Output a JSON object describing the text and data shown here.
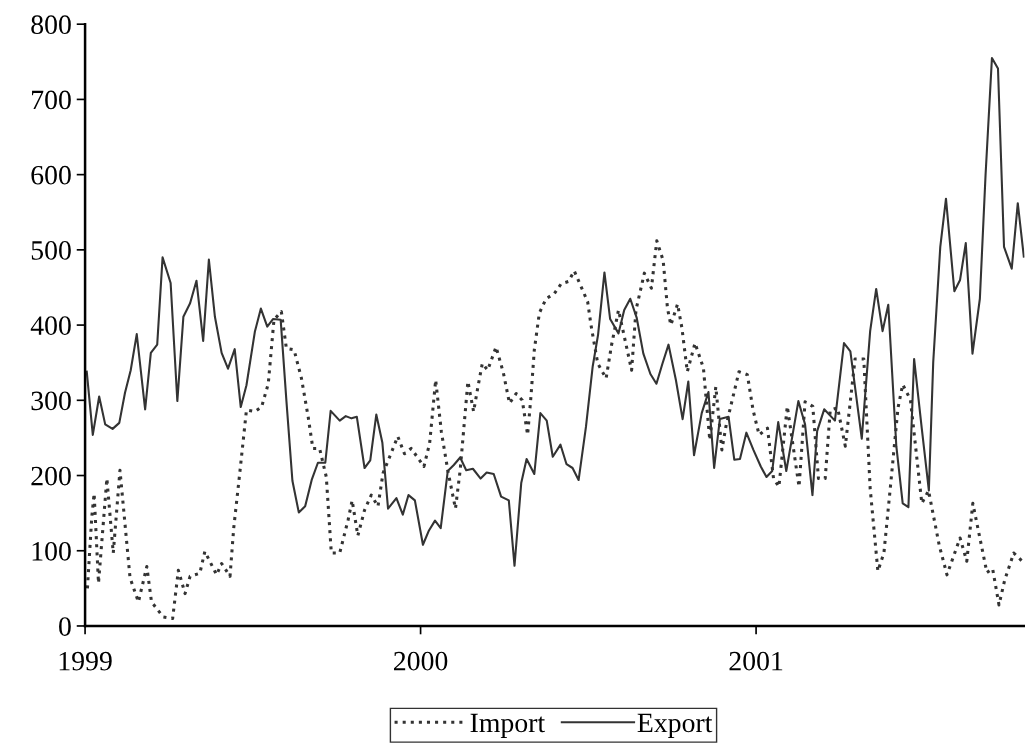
{
  "chart_data": {
    "type": "line",
    "xlim": [
      1999,
      2001.8
    ],
    "xticks": [
      1999,
      2000,
      2001
    ],
    "ylim": [
      0,
      800
    ],
    "yticks": [
      0,
      100,
      200,
      300,
      400,
      500,
      600,
      700,
      800
    ],
    "grid": false,
    "legend": "bottom",
    "marker": "none",
    "series": [
      {
        "name": "Import",
        "color": "#333333",
        "line_style": "dotted",
        "x": [
          1999.007,
          1999.02,
          1999.027,
          1999.04,
          1999.065,
          1999.084,
          1999.104,
          1999.134,
          1999.159,
          1999.184,
          1999.198,
          1999.233,
          1999.261,
          1999.278,
          1999.298,
          1999.313,
          1999.342,
          1999.357,
          1999.392,
          1999.407,
          1999.432,
          1999.443,
          1999.461,
          1999.481,
          1999.506,
          1999.526,
          1999.546,
          1999.563,
          1999.585,
          1999.6,
          1999.623,
          1999.645,
          1999.665,
          1999.679,
          1999.699,
          1999.719,
          1999.734,
          1999.759,
          1999.784,
          1999.796,
          1999.813,
          1999.833,
          1999.853,
          1999.873,
          1999.888,
          1999.908,
          1999.932,
          1999.952,
          1999.972,
          2000.01,
          2000.027,
          2000.045,
          2000.062,
          2000.081,
          2000.104,
          2000.118,
          2000.141,
          2000.158,
          2000.171,
          2000.184,
          2000.2,
          2000.225,
          2000.247,
          2000.265,
          2000.285,
          2000.303,
          2000.319,
          2000.329,
          2000.339,
          2000.354,
          2000.374,
          2000.399,
          2000.419,
          2000.441,
          2000.458,
          2000.498,
          2000.508,
          2000.528,
          2000.553,
          2000.569,
          2000.59,
          2000.629,
          2000.642,
          2000.667,
          2000.688,
          2000.704,
          2000.723,
          2000.736,
          2000.746,
          2000.766,
          2000.779,
          2000.795,
          2000.818,
          2000.843,
          2000.862,
          2000.88,
          2000.898,
          2000.91,
          2000.949,
          2000.974,
          2000.991,
          2001.009,
          2001.034,
          2001.052,
          2001.068,
          2001.093,
          2001.128,
          2001.146,
          2001.169,
          2001.186,
          2001.206,
          2001.221,
          2001.243,
          2001.266,
          2001.295,
          2001.321,
          2001.34,
          2001.363,
          2001.381,
          2001.401,
          2001.423,
          2001.437,
          2001.46,
          2001.494,
          2001.514,
          2001.546,
          2001.569,
          2001.608,
          2001.628,
          2001.646,
          2001.688,
          2001.705,
          2001.724,
          2001.741,
          2001.768,
          2001.798
        ],
        "values": [
          50,
          145,
          176,
          57,
          196,
          97,
          207,
          64,
          32,
          79,
          32,
          12,
          10,
          74,
          43,
          66,
          70,
          99,
          68,
          83,
          66,
          130,
          203,
          287,
          285,
          291,
          322,
          407,
          418,
          369,
          367,
          329,
          278,
          236,
          236,
          198,
          97,
          97,
          141,
          167,
          120,
          154,
          174,
          159,
          203,
          225,
          252,
          229,
          236,
          212,
          243,
          327,
          258,
          207,
          156,
          207,
          325,
          285,
          318,
          349,
          340,
          371,
          336,
          296,
          309,
          300,
          254,
          305,
          367,
          416,
          435,
          442,
          455,
          458,
          472,
          431,
          400,
          349,
          329,
          373,
          420,
          340,
          420,
          469,
          449,
          512,
          486,
          422,
          400,
          428,
          396,
          338,
          376,
          343,
          247,
          318,
          234,
          265,
          338,
          334,
          287,
          254,
          263,
          196,
          185,
          292,
          185,
          298,
          292,
          196,
          196,
          287,
          290,
          239,
          355,
          355,
          183,
          73,
          97,
          188,
          290,
          321,
          301,
          163,
          180,
          107,
          68,
          117,
          86,
          163,
          71,
          76,
          28,
          61,
          97,
          84
        ]
      },
      {
        "name": "Export",
        "color": "#333333",
        "line_style": "solid",
        "x": [
          1999.005,
          1999.023,
          1999.042,
          1999.06,
          1999.082,
          1999.102,
          1999.119,
          1999.136,
          1999.154,
          1999.179,
          1999.196,
          1999.215,
          1999.231,
          1999.255,
          1999.275,
          1999.293,
          1999.313,
          1999.332,
          1999.352,
          1999.369,
          1999.387,
          1999.407,
          1999.426,
          1999.446,
          1999.464,
          1999.481,
          1999.506,
          1999.524,
          1999.543,
          1999.56,
          1999.583,
          1999.6,
          1999.618,
          1999.637,
          1999.656,
          1999.676,
          1999.694,
          1999.716,
          1999.732,
          1999.759,
          1999.777,
          1999.794,
          1999.81,
          1999.833,
          1999.85,
          1999.868,
          1999.886,
          1999.903,
          1999.928,
          1999.947,
          1999.964,
          1999.983,
          2000.007,
          2000.025,
          2000.043,
          2000.06,
          2000.081,
          2000.099,
          2000.118,
          2000.136,
          2000.156,
          2000.179,
          2000.197,
          2000.218,
          2000.24,
          2000.263,
          2000.28,
          2000.3,
          2000.316,
          2000.339,
          2000.357,
          2000.376,
          2000.394,
          2000.417,
          2000.435,
          2000.453,
          2000.471,
          2000.493,
          2000.513,
          2000.529,
          2000.548,
          2000.565,
          2000.59,
          2000.607,
          2000.625,
          2000.644,
          2000.664,
          2000.685,
          2000.703,
          2000.721,
          2000.739,
          2000.761,
          2000.781,
          2000.798,
          2000.815,
          2000.838,
          2000.858,
          2000.875,
          2000.892,
          2000.918,
          2000.935,
          2000.952,
          2000.971,
          2000.992,
          2001.014,
          2001.031,
          2001.048,
          2001.066,
          2001.09,
          2001.108,
          2001.126,
          2001.146,
          2001.168,
          2001.182,
          2001.203,
          2001.235,
          2001.262,
          2001.281,
          2001.315,
          2001.34,
          2001.358,
          2001.377,
          2001.394,
          2001.418,
          2001.437,
          2001.454,
          2001.471,
          2001.494,
          2001.515,
          2001.528,
          2001.549,
          2001.566,
          2001.591,
          2001.608,
          2001.625,
          2001.645,
          2001.667,
          2001.684,
          2001.703,
          2001.721,
          2001.739,
          2001.762,
          2001.78,
          2001.798
        ],
        "values": [
          338,
          254,
          305,
          268,
          262,
          270,
          310,
          340,
          388,
          288,
          363,
          374,
          490,
          456,
          299,
          411,
          429,
          459,
          379,
          487,
          411,
          363,
          342,
          368,
          291,
          320,
          391,
          422,
          398,
          408,
          407,
          300,
          193,
          151,
          159,
          195,
          217,
          217,
          286,
          273,
          279,
          276,
          278,
          210,
          220,
          281,
          244,
          156,
          170,
          148,
          174,
          167,
          108,
          127,
          140,
          130,
          206,
          214,
          224,
          207,
          209,
          196,
          204,
          202,
          172,
          167,
          80,
          190,
          222,
          202,
          283,
          273,
          225,
          241,
          215,
          210,
          194,
          265,
          345,
          387,
          470,
          408,
          389,
          420,
          435,
          410,
          362,
          335,
          322,
          349,
          374,
          327,
          275,
          325,
          227,
          283,
          311,
          210,
          275,
          278,
          221,
          222,
          257,
          234,
          212,
          198,
          206,
          271,
          206,
          252,
          299,
          268,
          174,
          259,
          288,
          273,
          376,
          365,
          249,
          392,
          448,
          392,
          427,
          239,
          163,
          158,
          355,
          262,
          180,
          351,
          504,
          568,
          445,
          460,
          509,
          362,
          435,
          600,
          755,
          741,
          504,
          475,
          562,
          491
        ]
      }
    ]
  }
}
